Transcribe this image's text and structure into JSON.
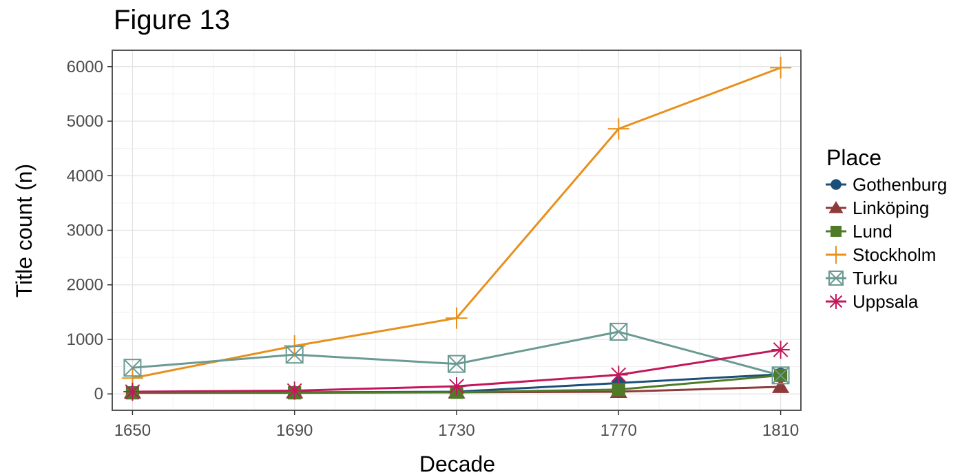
{
  "chart_data": {
    "type": "line",
    "title": "Figure 13",
    "xlabel": "Decade",
    "ylabel": "Title count (n)",
    "x": [
      1650,
      1690,
      1730,
      1770,
      1810
    ],
    "xticks": [
      "1650",
      "1690",
      "1730",
      "1770",
      "1810"
    ],
    "xlim": [
      1645,
      1815
    ],
    "ylim": [
      -300,
      6300
    ],
    "yticks": [
      "0",
      "1000",
      "2000",
      "3000",
      "4000",
      "5000",
      "6000"
    ],
    "grid": true,
    "legend": {
      "title": "Place",
      "position": "right"
    },
    "series": [
      {
        "name": "Gothenburg",
        "color": "#1b4f7a",
        "marker": "circle",
        "values": [
          30,
          30,
          40,
          200,
          360
        ]
      },
      {
        "name": "Linköping",
        "color": "#8e3a3a",
        "marker": "triangle",
        "values": [
          30,
          30,
          30,
          40,
          130
        ]
      },
      {
        "name": "Lund",
        "color": "#4f7a28",
        "marker": "square",
        "values": [
          20,
          20,
          30,
          80,
          340
        ]
      },
      {
        "name": "Stockholm",
        "color": "#e8901b",
        "marker": "plus",
        "values": [
          290,
          880,
          1390,
          4860,
          5980
        ]
      },
      {
        "name": "Turku",
        "color": "#6a9a93",
        "marker": "boxx",
        "values": [
          480,
          720,
          550,
          1140,
          340
        ]
      },
      {
        "name": "Uppsala",
        "color": "#c2185b",
        "marker": "asterisk",
        "values": [
          40,
          60,
          140,
          350,
          810
        ]
      }
    ]
  }
}
